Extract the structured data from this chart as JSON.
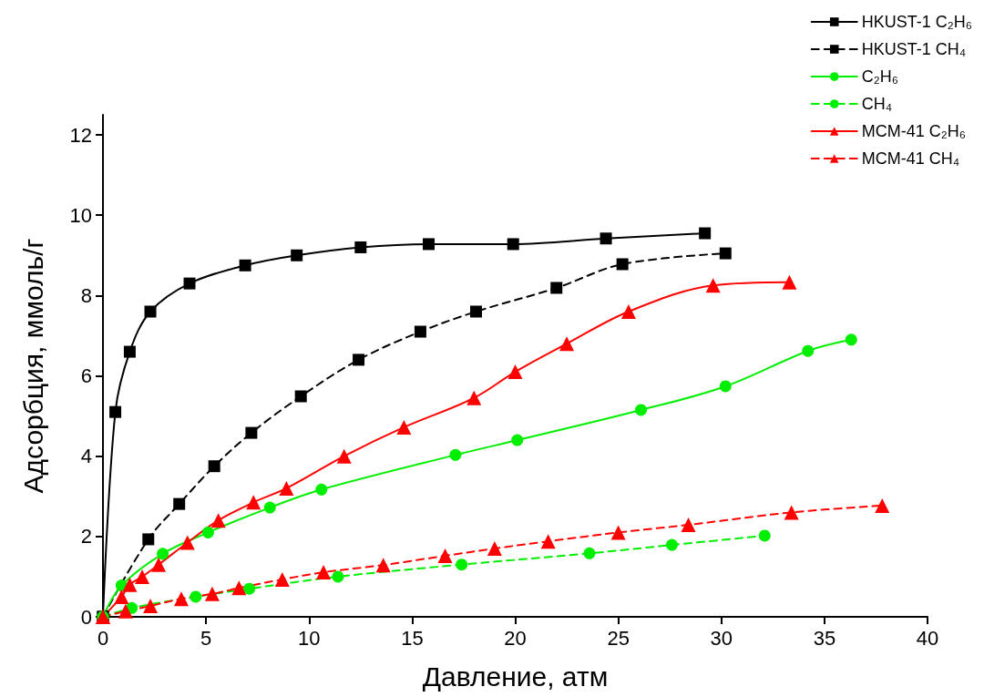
{
  "chart_data": {
    "type": "line",
    "xlabel": "Давление, атм",
    "ylabel": "Адсорбция, ммоль/г",
    "xlim": [
      0,
      40
    ],
    "xticks": [
      0,
      5,
      10,
      15,
      20,
      25,
      30,
      35,
      40
    ],
    "ylim": [
      0,
      12.5
    ],
    "yticks": [
      0,
      2,
      4,
      6,
      8,
      10,
      12
    ],
    "grid": false,
    "legend": "top right",
    "series": [
      {
        "name": "HKUST-1 C₂H₆",
        "color": "#000000",
        "marker": "square",
        "line_style": "solid",
        "x": [
          0,
          0.6,
          1.3,
          2.3,
          4.2,
          6.9,
          9.4,
          12.5,
          15.8,
          19.9,
          24.4,
          29.2
        ],
        "values": [
          0,
          5.1,
          6.6,
          7.6,
          8.3,
          8.75,
          9.0,
          9.2,
          9.28,
          9.28,
          9.42,
          9.55
        ]
      },
      {
        "name": "HKUST-1 CH₄",
        "color": "#000000",
        "marker": "square",
        "line_style": "dashed",
        "x": [
          0,
          2.2,
          3.7,
          5.4,
          7.2,
          9.6,
          12.4,
          15.4,
          18.1,
          22.0,
          25.2,
          30.2
        ],
        "values": [
          0,
          1.93,
          2.81,
          3.75,
          4.58,
          5.49,
          6.4,
          7.1,
          7.6,
          8.19,
          8.78,
          9.05
        ]
      },
      {
        "name": "C₂H₆",
        "color": "#00ee00",
        "marker": "circle",
        "line_style": "solid",
        "x": [
          0,
          0.9,
          2.9,
          5.1,
          8.1,
          10.6,
          17.1,
          20.1,
          26.1,
          30.2,
          34.2,
          36.3
        ],
        "values": [
          0,
          0.78,
          1.57,
          2.1,
          2.72,
          3.17,
          4.03,
          4.4,
          5.15,
          5.74,
          6.62,
          6.9
        ]
      },
      {
        "name": "CH₄",
        "color": "#00ee00",
        "marker": "circle",
        "line_style": "dashed",
        "x": [
          0,
          1.4,
          4.5,
          7.1,
          11.4,
          17.4,
          23.6,
          27.6,
          32.1
        ],
        "values": [
          0,
          0.22,
          0.5,
          0.7,
          1.0,
          1.3,
          1.58,
          1.79,
          2.02
        ]
      },
      {
        "name": "MCM-41 C₂H₆",
        "color": "#ff0000",
        "marker": "triangle",
        "line_style": "solid",
        "x": [
          0,
          0.9,
          1.3,
          1.9,
          2.7,
          4.1,
          5.6,
          7.3,
          8.9,
          11.7,
          14.6,
          18.0,
          20.0,
          22.5,
          25.5,
          29.6,
          33.3
        ],
        "values": [
          0,
          0.5,
          0.8,
          1.0,
          1.3,
          1.85,
          2.4,
          2.85,
          3.2,
          4.0,
          4.72,
          5.45,
          6.1,
          6.8,
          7.6,
          8.25,
          8.33
        ]
      },
      {
        "name": "MCM-41 CH₄",
        "color": "#ff0000",
        "marker": "triangle",
        "line_style": "dashed",
        "x": [
          0,
          1.1,
          2.3,
          3.8,
          5.3,
          6.6,
          8.7,
          10.7,
          13.6,
          16.6,
          19.0,
          21.6,
          25.0,
          28.4,
          33.4,
          37.8
        ],
        "values": [
          0,
          0.14,
          0.27,
          0.45,
          0.57,
          0.72,
          0.93,
          1.11,
          1.29,
          1.52,
          1.7,
          1.88,
          2.1,
          2.29,
          2.6,
          2.77
        ]
      }
    ]
  }
}
